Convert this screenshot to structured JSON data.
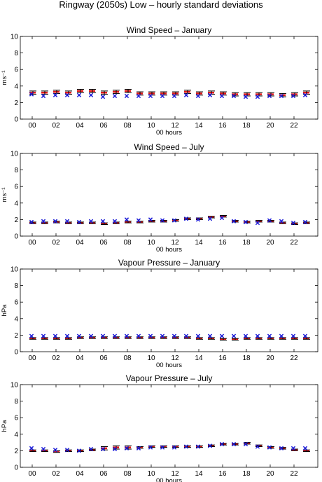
{
  "figure_title": "Ringway (2050s) Low – hourly standard deviations",
  "colors": {
    "observed_marker": "#1a1ad6",
    "bar": "#e21b1b",
    "errorbar": "#000000",
    "axes": "#000000"
  },
  "chart_data": [
    {
      "type": "errorbar",
      "title": "Wind Speed – January",
      "xlabel": "00 hours",
      "ylabel": "ms⁻¹",
      "ylim": [
        0,
        10
      ],
      "xlim": [
        -1,
        24
      ],
      "yticks": [
        "0",
        "2",
        "4",
        "6",
        "8",
        "10"
      ],
      "xticks": [
        "00",
        "02",
        "04",
        "06",
        "08",
        "10",
        "12",
        "14",
        "16",
        "18",
        "20",
        "22"
      ],
      "grid": false,
      "x": [
        0,
        1,
        2,
        3,
        4,
        5,
        6,
        7,
        8,
        9,
        10,
        11,
        12,
        13,
        14,
        15,
        16,
        17,
        18,
        19,
        20,
        21,
        22,
        23
      ],
      "series": [
        {
          "values": [
            3.2,
            3.2,
            3.3,
            3.2,
            3.4,
            3.4,
            3.2,
            3.3,
            3.4,
            3.1,
            3.1,
            3.1,
            3.1,
            3.3,
            3.1,
            3.2,
            3.1,
            3.0,
            3.0,
            3.0,
            3.0,
            2.9,
            3.0,
            3.2
          ],
          "low": [
            3.0,
            3.0,
            3.1,
            3.0,
            3.2,
            3.2,
            3.0,
            3.1,
            3.2,
            2.9,
            2.9,
            2.9,
            2.9,
            3.1,
            2.9,
            3.0,
            2.9,
            2.8,
            2.8,
            2.8,
            2.8,
            2.7,
            2.8,
            3.0
          ],
          "high": [
            3.4,
            3.4,
            3.5,
            3.4,
            3.6,
            3.6,
            3.4,
            3.5,
            3.6,
            3.3,
            3.3,
            3.3,
            3.3,
            3.5,
            3.3,
            3.4,
            3.3,
            3.2,
            3.2,
            3.2,
            3.2,
            3.1,
            3.2,
            3.4
          ]
        },
        {
          "values": [
            3.0,
            2.8,
            2.9,
            2.9,
            2.9,
            2.9,
            2.7,
            2.8,
            2.8,
            2.8,
            2.8,
            2.8,
            2.8,
            2.9,
            2.8,
            2.9,
            2.8,
            2.8,
            2.7,
            2.7,
            2.8,
            2.8,
            2.8,
            2.9
          ]
        }
      ]
    },
    {
      "type": "errorbar",
      "title": "Wind Speed – July",
      "xlabel": "00 hours",
      "ylabel": "ms⁻¹",
      "ylim": [
        0,
        10
      ],
      "xlim": [
        -1,
        24
      ],
      "yticks": [
        "0",
        "2",
        "4",
        "6",
        "8",
        "10"
      ],
      "xticks": [
        "00",
        "02",
        "04",
        "06",
        "08",
        "10",
        "12",
        "14",
        "16",
        "18",
        "20",
        "22"
      ],
      "grid": false,
      "x": [
        0,
        1,
        2,
        3,
        4,
        5,
        6,
        7,
        8,
        9,
        10,
        11,
        12,
        13,
        14,
        15,
        16,
        17,
        18,
        19,
        20,
        21,
        22,
        23
      ],
      "series": [
        {
          "values": [
            1.6,
            1.6,
            1.7,
            1.6,
            1.6,
            1.6,
            1.5,
            1.6,
            1.7,
            1.7,
            1.8,
            1.8,
            1.9,
            2.1,
            2.1,
            2.3,
            2.4,
            1.8,
            1.7,
            1.8,
            1.8,
            1.6,
            1.5,
            1.6
          ],
          "low": [
            1.5,
            1.5,
            1.6,
            1.5,
            1.5,
            1.5,
            1.4,
            1.5,
            1.6,
            1.6,
            1.7,
            1.7,
            1.8,
            2.0,
            2.0,
            2.2,
            2.3,
            1.7,
            1.6,
            1.7,
            1.7,
            1.5,
            1.4,
            1.5
          ],
          "high": [
            1.7,
            1.7,
            1.8,
            1.7,
            1.7,
            1.7,
            1.6,
            1.7,
            1.8,
            1.8,
            1.9,
            1.9,
            2.0,
            2.2,
            2.2,
            2.4,
            2.5,
            1.9,
            1.8,
            1.9,
            1.9,
            1.7,
            1.6,
            1.7
          ]
        },
        {
          "values": [
            1.7,
            1.8,
            1.8,
            1.8,
            1.7,
            1.8,
            1.8,
            1.8,
            2.0,
            1.9,
            2.0,
            1.9,
            1.9,
            2.1,
            2.0,
            2.1,
            2.2,
            1.8,
            1.7,
            1.6,
            1.9,
            1.8,
            1.6,
            1.7
          ]
        }
      ]
    },
    {
      "type": "errorbar",
      "title": "Vapour Pressure – January",
      "xlabel": "00 hours",
      "ylabel": "hPa",
      "ylim": [
        0,
        10
      ],
      "xlim": [
        -1,
        24
      ],
      "yticks": [
        "0",
        "2",
        "4",
        "6",
        "8",
        "10"
      ],
      "xticks": [
        "00",
        "02",
        "04",
        "06",
        "08",
        "10",
        "12",
        "14",
        "16",
        "18",
        "20",
        "22"
      ],
      "grid": false,
      "x": [
        0,
        1,
        2,
        3,
        4,
        5,
        6,
        7,
        8,
        9,
        10,
        11,
        12,
        13,
        14,
        15,
        16,
        17,
        18,
        19,
        20,
        21,
        22,
        23
      ],
      "series": [
        {
          "values": [
            1.6,
            1.6,
            1.6,
            1.6,
            1.7,
            1.7,
            1.7,
            1.7,
            1.7,
            1.7,
            1.7,
            1.7,
            1.7,
            1.7,
            1.6,
            1.6,
            1.5,
            1.5,
            1.6,
            1.6,
            1.6,
            1.6,
            1.6,
            1.6
          ],
          "low": [
            1.5,
            1.5,
            1.5,
            1.5,
            1.6,
            1.6,
            1.6,
            1.6,
            1.6,
            1.6,
            1.6,
            1.6,
            1.6,
            1.6,
            1.5,
            1.5,
            1.4,
            1.4,
            1.5,
            1.5,
            1.5,
            1.5,
            1.5,
            1.5
          ],
          "high": [
            1.7,
            1.7,
            1.7,
            1.7,
            1.8,
            1.8,
            1.8,
            1.8,
            1.8,
            1.8,
            1.8,
            1.8,
            1.8,
            1.8,
            1.7,
            1.7,
            1.6,
            1.6,
            1.7,
            1.7,
            1.7,
            1.7,
            1.7,
            1.7
          ]
        },
        {
          "values": [
            1.9,
            1.9,
            1.9,
            1.9,
            1.9,
            1.9,
            1.9,
            1.9,
            1.9,
            1.9,
            1.9,
            1.9,
            1.9,
            1.9,
            1.9,
            1.9,
            1.9,
            1.9,
            1.9,
            1.9,
            1.9,
            1.9,
            1.9,
            1.9
          ]
        }
      ]
    },
    {
      "type": "errorbar",
      "title": "Vapour Pressure – July",
      "xlabel": "00 hours",
      "ylabel": "hPa",
      "ylim": [
        0,
        10
      ],
      "xlim": [
        -1,
        24
      ],
      "yticks": [
        "0",
        "2",
        "4",
        "6",
        "8",
        "10"
      ],
      "xticks": [
        "00",
        "02",
        "04",
        "06",
        "08",
        "10",
        "12",
        "14",
        "16",
        "18",
        "20",
        "22"
      ],
      "grid": false,
      "x": [
        0,
        1,
        2,
        3,
        4,
        5,
        6,
        7,
        8,
        9,
        10,
        11,
        12,
        13,
        14,
        15,
        16,
        17,
        18,
        19,
        20,
        21,
        22,
        23
      ],
      "series": [
        {
          "values": [
            2.0,
            2.0,
            1.9,
            2.0,
            2.0,
            2.1,
            2.3,
            2.4,
            2.4,
            2.4,
            2.5,
            2.5,
            2.5,
            2.5,
            2.5,
            2.6,
            2.8,
            2.8,
            2.9,
            2.6,
            2.4,
            2.3,
            2.1,
            2.0
          ],
          "low": [
            1.9,
            1.9,
            1.8,
            1.9,
            1.9,
            2.0,
            2.1,
            2.2,
            2.2,
            2.3,
            2.4,
            2.4,
            2.4,
            2.4,
            2.4,
            2.5,
            2.7,
            2.7,
            2.8,
            2.5,
            2.3,
            2.2,
            2.0,
            1.9
          ],
          "high": [
            2.1,
            2.1,
            2.0,
            2.1,
            2.1,
            2.2,
            2.5,
            2.6,
            2.6,
            2.5,
            2.6,
            2.6,
            2.6,
            2.6,
            2.6,
            2.7,
            2.9,
            2.9,
            3.0,
            2.7,
            2.5,
            2.4,
            2.2,
            2.1
          ]
        },
        {
          "values": [
            2.3,
            2.2,
            2.1,
            2.1,
            2.0,
            2.2,
            2.2,
            2.2,
            2.3,
            2.3,
            2.4,
            2.4,
            2.4,
            2.5,
            2.5,
            2.6,
            2.8,
            2.8,
            2.8,
            2.5,
            2.4,
            2.3,
            2.3,
            2.3
          ]
        }
      ]
    }
  ]
}
